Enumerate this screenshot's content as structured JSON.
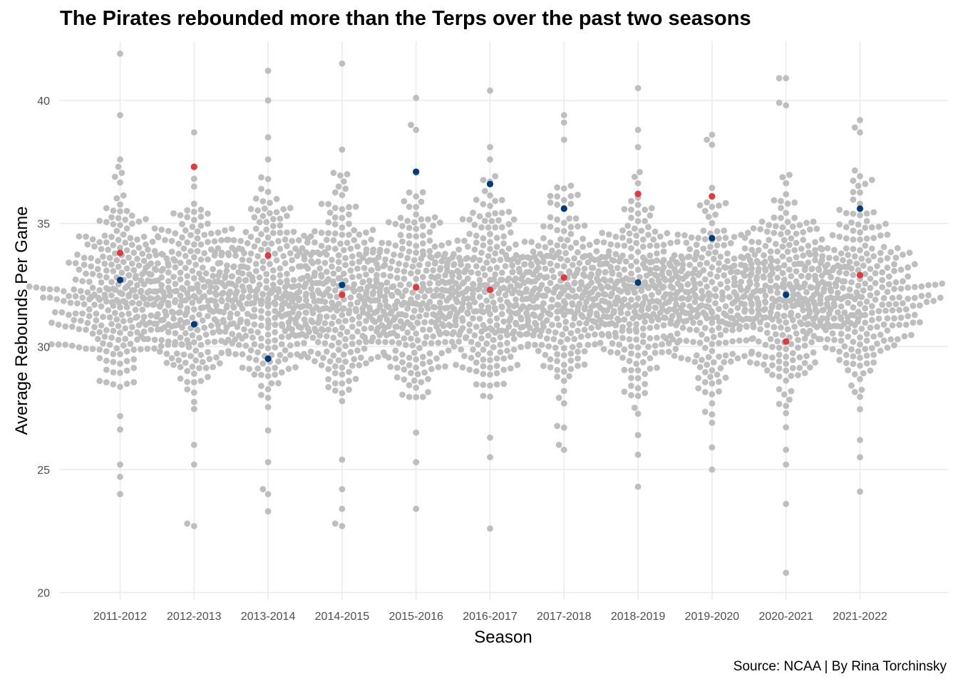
{
  "chart_data": {
    "type": "scatter",
    "subtype": "beeswarm",
    "title": "The Pirates rebounded more than the Terps over the past two seasons",
    "xlabel": "Season",
    "ylabel": "Average Rebounds Per Game",
    "caption": "Source: NCAA | By Rina Torchinsky",
    "categories": [
      "2011-2012",
      "2012-2013",
      "2013-2014",
      "2014-2015",
      "2015-2016",
      "2016-2017",
      "2017-2018",
      "2018-2019",
      "2019-2020",
      "2020-2021",
      "2021-2022"
    ],
    "ylim": [
      19.7,
      42.4
    ],
    "yticks": [
      20,
      25,
      30,
      35,
      40
    ],
    "grid": true,
    "colors": {
      "all_teams": "#bebebe",
      "red_team": "#e03a3e",
      "blue_team": "#003c7d"
    },
    "series": [
      {
        "values": [
          33.8,
          37.3,
          33.7,
          32.1,
          32.4,
          32.3,
          32.8,
          36.2,
          36.1,
          30.2,
          32.9
        ],
        "color": "#e03a3e"
      },
      {
        "values": [
          32.7,
          30.9,
          29.5,
          32.5,
          37.1,
          36.6,
          35.6,
          32.6,
          34.4,
          32.1,
          35.6
        ],
        "color": "#003c7d"
      }
    ],
    "extremes": [
      {
        "season": "2011-2012",
        "values": [
          41.9,
          39.4,
          37.6,
          37.3,
          24.0,
          24.7,
          25.2
        ]
      },
      {
        "season": "2012-2013",
        "values": [
          38.7,
          37.3,
          22.7,
          22.8,
          25.2,
          26.0
        ]
      },
      {
        "season": "2013-2014",
        "values": [
          41.2,
          40.0,
          38.5,
          37.6,
          23.3,
          24.0,
          24.2,
          25.3
        ]
      },
      {
        "season": "2014-2015",
        "values": [
          41.5,
          38.0,
          37.0,
          22.7,
          22.8,
          23.4,
          24.2,
          25.4
        ]
      },
      {
        "season": "2015-2016",
        "values": [
          40.1,
          39.0,
          38.8,
          23.4,
          25.3,
          26.5
        ]
      },
      {
        "season": "2016-2017",
        "values": [
          40.4,
          38.1,
          37.6,
          22.6,
          25.5,
          26.3
        ]
      },
      {
        "season": "2017-2018",
        "values": [
          39.4,
          39.1,
          38.4,
          25.8,
          26.0,
          26.7
        ]
      },
      {
        "season": "2018-2019",
        "values": [
          40.5,
          38.8,
          38.1,
          24.3,
          25.6,
          26.4
        ]
      },
      {
        "season": "2019-2020",
        "values": [
          38.6,
          38.4,
          38.2,
          25.0,
          25.9,
          26.9
        ]
      },
      {
        "season": "2020-2021",
        "values": [
          40.9,
          40.9,
          39.9,
          39.8,
          20.8,
          23.6,
          25.2,
          25.8
        ]
      },
      {
        "season": "2021-2022",
        "values": [
          39.2,
          38.9,
          38.7,
          24.1,
          25.5,
          26.2
        ]
      }
    ]
  }
}
